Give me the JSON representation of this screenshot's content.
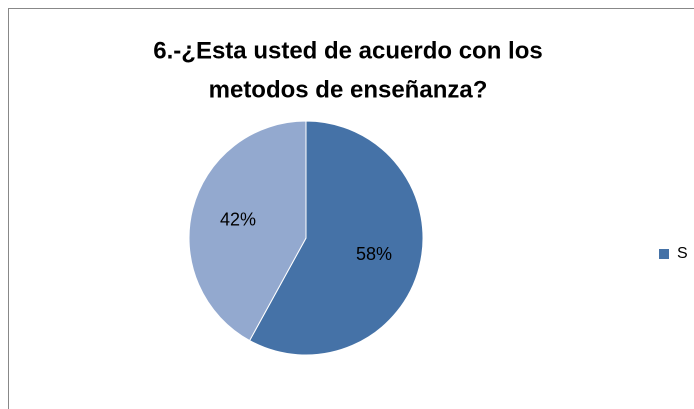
{
  "chart_data": {
    "type": "pie",
    "title": "6.-¿Esta  usted de acuerdo con los metodos de enseñanza?",
    "title_lines": [
      "6.-¿Esta  usted de acuerdo con los",
      "metodos de enseñanza?"
    ],
    "categories": [
      "S",
      null
    ],
    "values": [
      58,
      42
    ],
    "value_labels": [
      "58%",
      "42%"
    ],
    "colors": [
      "#4572a7",
      "#93a9cf"
    ],
    "legend": "right"
  }
}
